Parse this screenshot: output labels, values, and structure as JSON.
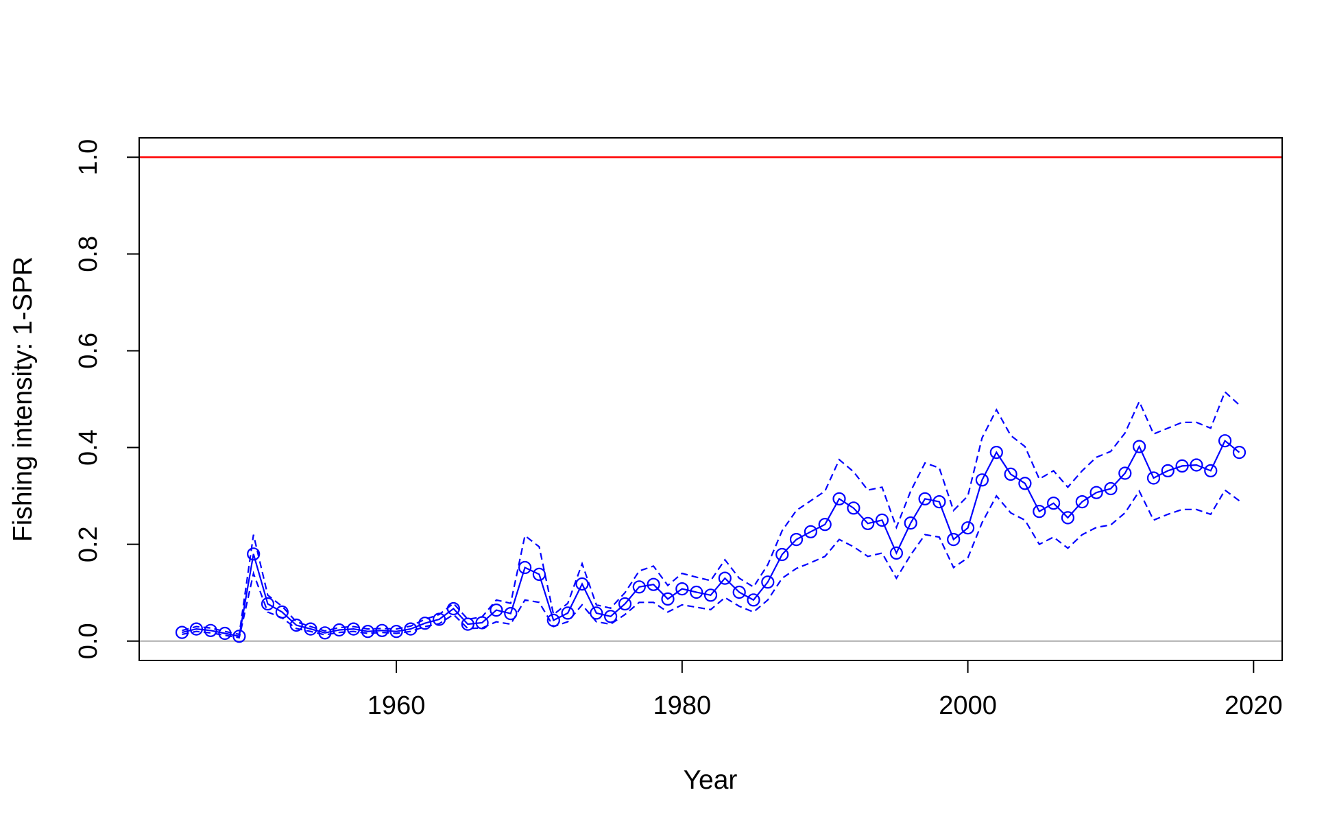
{
  "chart_data": {
    "type": "line",
    "title": "",
    "xlabel": "Year",
    "ylabel": "Fishing intensity: 1-SPR",
    "xlim": [
      1942,
      2022
    ],
    "ylim": [
      -0.04,
      1.04
    ],
    "x_ticks": [
      1960,
      1980,
      2000,
      2020
    ],
    "y_ticks": [
      0.0,
      0.2,
      0.4,
      0.6,
      0.8,
      1.0
    ],
    "y_tick_labels": [
      "0.0",
      "0.2",
      "0.4",
      "0.6",
      "0.8",
      "1.0"
    ],
    "grid": false,
    "legend": "none",
    "reference_lines": [
      {
        "y": 1.0,
        "color": "#ff0000"
      },
      {
        "y": 0.0,
        "color": "#bebebe"
      }
    ],
    "series": [
      {
        "role": "estimate",
        "color": "#0000ff",
        "line": "solid",
        "markers": "open-circle",
        "x": [
          1945,
          1946,
          1947,
          1948,
          1949,
          1950,
          1951,
          1952,
          1953,
          1954,
          1955,
          1956,
          1957,
          1958,
          1959,
          1960,
          1961,
          1962,
          1963,
          1964,
          1965,
          1966,
          1967,
          1968,
          1969,
          1970,
          1971,
          1972,
          1973,
          1974,
          1975,
          1976,
          1977,
          1978,
          1979,
          1980,
          1981,
          1982,
          1983,
          1984,
          1985,
          1986,
          1987,
          1988,
          1989,
          1990,
          1991,
          1992,
          1993,
          1994,
          1995,
          1996,
          1997,
          1998,
          1999,
          2000,
          2001,
          2002,
          2003,
          2004,
          2005,
          2006,
          2007,
          2008,
          2009,
          2010,
          2011,
          2012,
          2013,
          2014,
          2015,
          2016,
          2017,
          2018,
          2019
        ],
        "y": [
          0.018,
          0.025,
          0.022,
          0.016,
          0.01,
          0.18,
          0.077,
          0.06,
          0.033,
          0.025,
          0.017,
          0.023,
          0.025,
          0.02,
          0.022,
          0.02,
          0.025,
          0.037,
          0.045,
          0.067,
          0.035,
          0.038,
          0.064,
          0.057,
          0.152,
          0.138,
          0.043,
          0.058,
          0.118,
          0.058,
          0.051,
          0.077,
          0.112,
          0.117,
          0.087,
          0.108,
          0.101,
          0.095,
          0.13,
          0.101,
          0.085,
          0.122,
          0.179,
          0.21,
          0.226,
          0.241,
          0.294,
          0.275,
          0.243,
          0.25,
          0.182,
          0.244,
          0.294,
          0.288,
          0.21,
          0.234,
          0.333,
          0.39,
          0.345,
          0.326,
          0.268,
          0.285,
          0.255,
          0.288,
          0.307,
          0.315,
          0.347,
          0.402,
          0.337,
          0.352,
          0.362,
          0.364,
          0.352,
          0.414,
          0.39
        ]
      },
      {
        "role": "upper-interval",
        "color": "#0000ff",
        "line": "dashed",
        "x": [
          1945,
          1946,
          1947,
          1948,
          1949,
          1950,
          1951,
          1952,
          1953,
          1954,
          1955,
          1956,
          1957,
          1958,
          1959,
          1960,
          1961,
          1962,
          1963,
          1964,
          1965,
          1966,
          1967,
          1968,
          1969,
          1970,
          1971,
          1972,
          1973,
          1974,
          1975,
          1976,
          1977,
          1978,
          1979,
          1980,
          1981,
          1982,
          1983,
          1984,
          1985,
          1986,
          1987,
          1988,
          1989,
          1990,
          1991,
          1992,
          1993,
          1994,
          1995,
          1996,
          1997,
          1998,
          1999,
          2000,
          2001,
          2002,
          2003,
          2004,
          2005,
          2006,
          2007,
          2008,
          2009,
          2010,
          2011,
          2012,
          2013,
          2014,
          2015,
          2016,
          2017,
          2018,
          2019
        ],
        "y": [
          0.022,
          0.03,
          0.027,
          0.02,
          0.014,
          0.22,
          0.095,
          0.072,
          0.04,
          0.03,
          0.021,
          0.028,
          0.03,
          0.025,
          0.026,
          0.025,
          0.031,
          0.045,
          0.055,
          0.078,
          0.045,
          0.05,
          0.085,
          0.078,
          0.218,
          0.195,
          0.055,
          0.078,
          0.16,
          0.075,
          0.068,
          0.1,
          0.145,
          0.155,
          0.115,
          0.14,
          0.132,
          0.125,
          0.168,
          0.13,
          0.112,
          0.158,
          0.228,
          0.27,
          0.29,
          0.31,
          0.375,
          0.35,
          0.312,
          0.318,
          0.235,
          0.31,
          0.368,
          0.358,
          0.27,
          0.3,
          0.42,
          0.478,
          0.425,
          0.402,
          0.335,
          0.352,
          0.318,
          0.352,
          0.38,
          0.392,
          0.43,
          0.495,
          0.428,
          0.44,
          0.452,
          0.452,
          0.44,
          0.515,
          0.488
        ]
      },
      {
        "role": "lower-interval",
        "color": "#0000ff",
        "line": "dashed",
        "x": [
          1945,
          1946,
          1947,
          1948,
          1949,
          1950,
          1951,
          1952,
          1953,
          1954,
          1955,
          1956,
          1957,
          1958,
          1959,
          1960,
          1961,
          1962,
          1963,
          1964,
          1965,
          1966,
          1967,
          1968,
          1969,
          1970,
          1971,
          1972,
          1973,
          1974,
          1975,
          1976,
          1977,
          1978,
          1979,
          1980,
          1981,
          1982,
          1983,
          1984,
          1985,
          1986,
          1987,
          1988,
          1989,
          1990,
          1991,
          1992,
          1993,
          1994,
          1995,
          1996,
          1997,
          1998,
          1999,
          2000,
          2001,
          2002,
          2003,
          2004,
          2005,
          2006,
          2007,
          2008,
          2009,
          2010,
          2011,
          2012,
          2013,
          2014,
          2015,
          2016,
          2017,
          2018,
          2019
        ],
        "y": [
          0.014,
          0.02,
          0.017,
          0.012,
          0.007,
          0.14,
          0.06,
          0.048,
          0.026,
          0.02,
          0.013,
          0.018,
          0.02,
          0.016,
          0.018,
          0.016,
          0.02,
          0.03,
          0.036,
          0.055,
          0.026,
          0.027,
          0.04,
          0.035,
          0.085,
          0.08,
          0.03,
          0.04,
          0.075,
          0.04,
          0.035,
          0.055,
          0.08,
          0.08,
          0.06,
          0.075,
          0.07,
          0.065,
          0.09,
          0.072,
          0.06,
          0.085,
          0.13,
          0.15,
          0.162,
          0.175,
          0.21,
          0.195,
          0.175,
          0.182,
          0.13,
          0.178,
          0.22,
          0.215,
          0.152,
          0.172,
          0.245,
          0.3,
          0.265,
          0.25,
          0.2,
          0.215,
          0.192,
          0.22,
          0.235,
          0.24,
          0.265,
          0.31,
          0.25,
          0.262,
          0.272,
          0.272,
          0.262,
          0.312,
          0.29
        ]
      }
    ]
  }
}
